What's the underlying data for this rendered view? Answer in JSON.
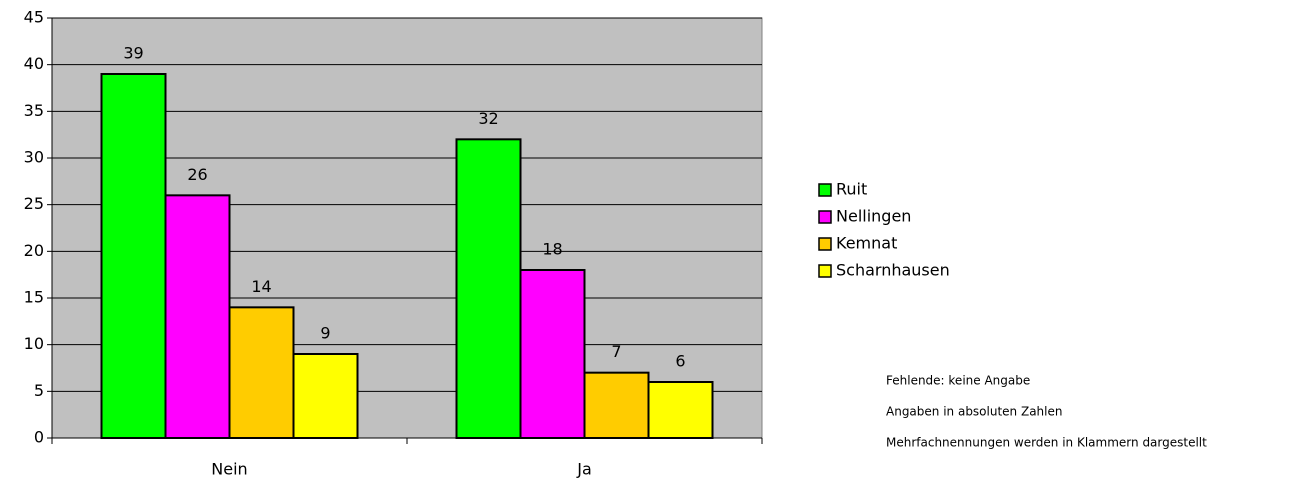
{
  "chart_data": {
    "type": "bar",
    "categories": [
      "Nein",
      "Ja"
    ],
    "series": [
      {
        "name": "Ruit",
        "color": "#00ff00",
        "values": [
          39,
          32
        ]
      },
      {
        "name": "Nellingen",
        "color": "#ff00ff",
        "values": [
          26,
          18
        ]
      },
      {
        "name": "Kemnat",
        "color": "#ffcc00",
        "values": [
          14,
          7
        ]
      },
      {
        "name": "Scharnhausen",
        "color": "#ffff00",
        "values": [
          9,
          6
        ]
      }
    ],
    "ylim": [
      0,
      45
    ],
    "yticks": [
      0,
      5,
      10,
      15,
      20,
      25,
      30,
      35,
      40,
      45
    ],
    "grid": true,
    "legend": "right",
    "notes": [
      "Fehlende: keine Angabe",
      "Angaben in absoluten Zahlen",
      "Mehrfachnennungen werden in Klammern dargestellt"
    ]
  }
}
